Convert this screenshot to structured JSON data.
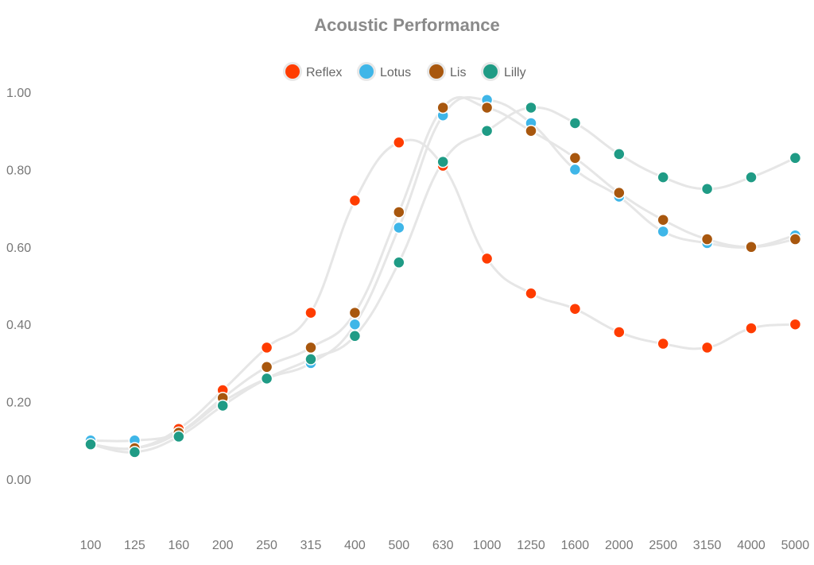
{
  "chart_data": {
    "type": "line",
    "title": "Acoustic Performance",
    "xlabel": "",
    "ylabel": "",
    "categories": [
      "100",
      "125",
      "160",
      "200",
      "250",
      "315",
      "400",
      "500",
      "630",
      "1000",
      "1250",
      "1600",
      "2000",
      "2500",
      "3150",
      "4000",
      "5000"
    ],
    "ylim": [
      -0.1,
      1.0
    ],
    "yticks": [
      "0.00",
      "0.20",
      "0.40",
      "0.60",
      "0.80",
      "1.00"
    ],
    "grid": false,
    "legend_position": "top-center",
    "line_color": "#e6e6e6",
    "series": [
      {
        "name": "Reflex",
        "color": "#ff3c00",
        "values": [
          0.09,
          0.08,
          0.13,
          0.23,
          0.34,
          0.43,
          0.72,
          0.87,
          0.81,
          0.57,
          0.48,
          0.44,
          0.38,
          0.35,
          0.34,
          0.39,
          0.4
        ]
      },
      {
        "name": "Lotus",
        "color": "#3fb6e8",
        "values": [
          0.1,
          0.1,
          0.12,
          0.2,
          0.26,
          0.3,
          0.4,
          0.65,
          0.94,
          0.98,
          0.92,
          0.8,
          0.73,
          0.64,
          0.61,
          0.6,
          0.63
        ]
      },
      {
        "name": "Lis",
        "color": "#a8570e",
        "values": [
          0.09,
          0.08,
          0.12,
          0.21,
          0.29,
          0.34,
          0.43,
          0.69,
          0.96,
          0.96,
          0.9,
          0.83,
          0.74,
          0.67,
          0.62,
          0.6,
          0.62
        ]
      },
      {
        "name": "Lilly",
        "color": "#1f9b85",
        "values": [
          0.09,
          0.07,
          0.11,
          0.19,
          0.26,
          0.31,
          0.37,
          0.56,
          0.82,
          0.9,
          0.96,
          0.92,
          0.84,
          0.78,
          0.75,
          0.78,
          0.83
        ]
      }
    ]
  }
}
